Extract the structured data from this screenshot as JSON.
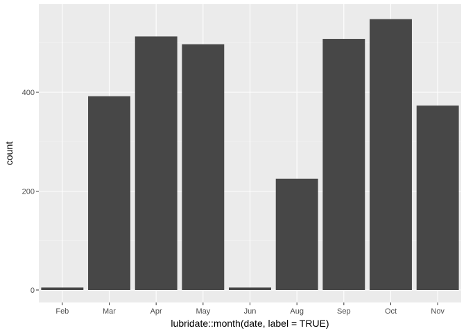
{
  "chart_data": {
    "type": "bar",
    "title": "",
    "xlabel": "lubridate::month(date, label = TRUE)",
    "ylabel": "count",
    "categories": [
      "Feb",
      "Mar",
      "Apr",
      "May",
      "Jun",
      "Aug",
      "Sep",
      "Oct",
      "Nov"
    ],
    "values": [
      5,
      392,
      513,
      497,
      5,
      225,
      508,
      548,
      373
    ],
    "ylim": [
      0,
      575
    ],
    "yticks": [
      0,
      200,
      400
    ],
    "grid": true,
    "legend": "none",
    "colors": {
      "bar": "#474747",
      "panel": "#ebebeb",
      "grid_major": "#ffffff",
      "grid_minor": "#f5f5f5",
      "tick_text": "#4d4d4d"
    }
  }
}
